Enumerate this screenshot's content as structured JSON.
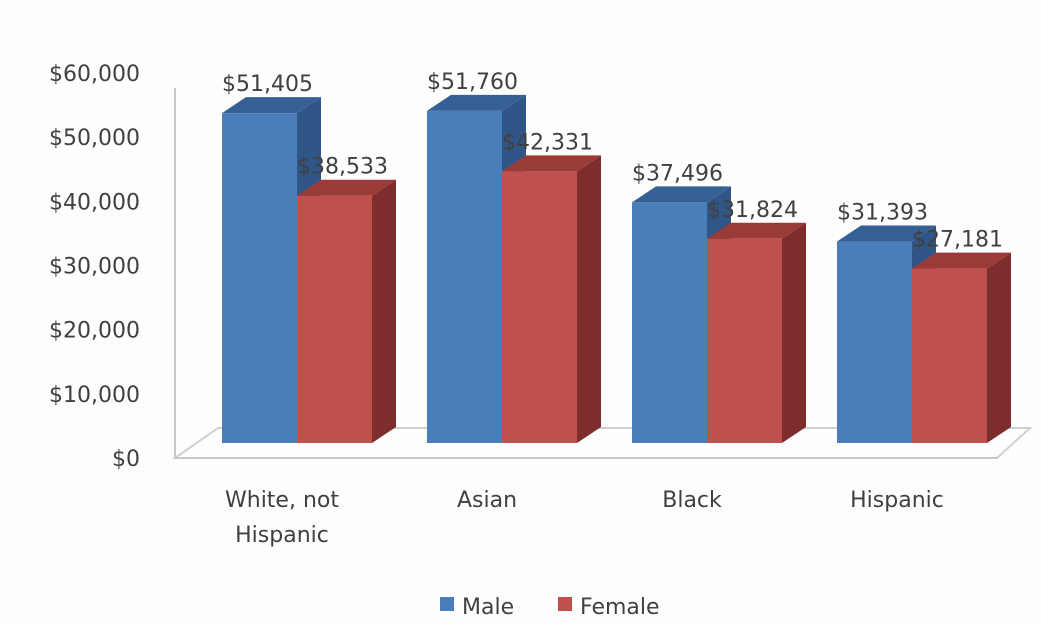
{
  "chart_data": {
    "type": "bar",
    "title": "",
    "xlabel": "",
    "ylabel": "",
    "categories": [
      [
        "White, not",
        "Hispanic"
      ],
      [
        "Asian"
      ],
      [
        "Black"
      ],
      [
        "Hispanic"
      ]
    ],
    "series": [
      {
        "name": "Male",
        "values": [
          51405,
          51760,
          37496,
          31393
        ],
        "labels": [
          "$51,405",
          "$51,760",
          "$37,496",
          "$31,393"
        ],
        "color": "#4a7ebb",
        "side_color": "#2f5687",
        "top_color": "#365f93"
      },
      {
        "name": "Female",
        "values": [
          38533,
          42331,
          31824,
          27181
        ],
        "labels": [
          "$38,533",
          "$42,331",
          "$31,824",
          "$27,181"
        ],
        "color": "#c0504d",
        "side_color": "#7d2e2c",
        "top_color": "#9b3b38"
      }
    ],
    "ylim": [
      0,
      60000
    ],
    "yticks": [
      0,
      10000,
      20000,
      30000,
      40000,
      50000,
      60000
    ],
    "ytick_labels": [
      "$0",
      "$10,000",
      "$20,000",
      "$30,000",
      "$40,000",
      "$50,000",
      "$60,000"
    ],
    "grid": false,
    "three_d": true,
    "legend_position": "bottom"
  }
}
